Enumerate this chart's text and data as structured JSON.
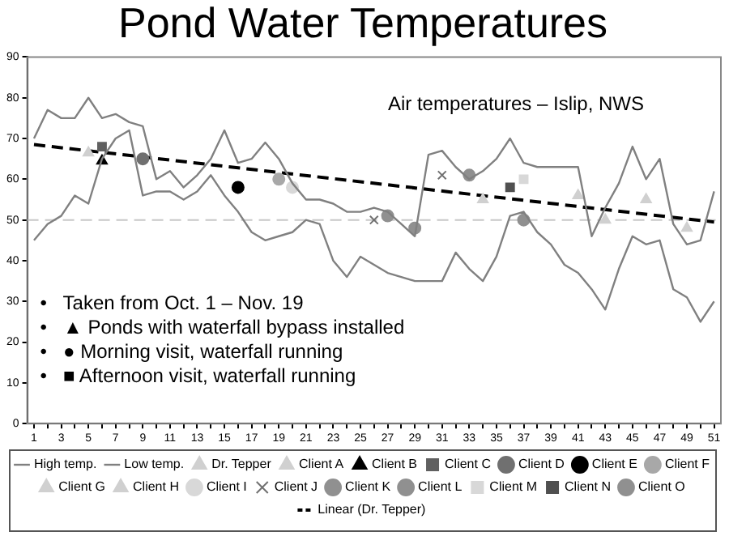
{
  "chart_data": {
    "type": "scatter",
    "title": "Pond Water Temperatures",
    "xlim": [
      0.5,
      51.5
    ],
    "xticks": [
      1,
      {
        "value": 2,
        "label": null
      },
      3,
      {
        "value": 4,
        "label": null
      },
      5,
      {
        "value": 6,
        "label": null
      },
      7,
      {
        "value": 8,
        "label": null
      },
      9,
      {
        "value": 10,
        "label": null
      },
      11,
      {
        "value": 12,
        "label": null
      },
      13,
      {
        "value": 14,
        "label": null
      },
      15,
      {
        "value": 16,
        "label": null
      },
      17,
      {
        "value": 18,
        "label": null
      },
      19,
      {
        "value": 20,
        "label": null
      },
      21,
      {
        "value": 22,
        "label": null
      },
      23,
      {
        "value": 24,
        "label": null
      },
      25,
      {
        "value": 26,
        "label": null
      },
      27,
      {
        "value": 28,
        "label": null
      },
      29,
      {
        "value": 30,
        "label": null
      },
      31,
      {
        "value": 32,
        "label": null
      },
      33,
      {
        "value": 34,
        "label": null
      },
      35,
      {
        "value": 36,
        "label": null
      },
      37,
      {
        "value": 38,
        "label": null
      },
      39,
      {
        "value": 40,
        "label": null
      },
      41,
      {
        "value": 42,
        "label": null
      },
      43,
      {
        "value": 44,
        "label": null
      },
      45,
      {
        "value": 46,
        "label": null
      },
      47,
      {
        "value": 48,
        "label": null
      },
      49,
      {
        "value": 50,
        "label": null
      },
      51
    ],
    "ylim": [
      0,
      90
    ],
    "yticks": [
      0,
      10,
      20,
      30,
      40,
      50,
      60,
      70,
      80,
      90
    ],
    "legend": "bottom",
    "ref_lines": [
      {
        "axis": "y",
        "value": 50,
        "label": null,
        "color": "#c8c8c8",
        "line_style": "dashed"
      }
    ],
    "annotations": [
      "Air temperatures – Islip, NWS",
      "•   Taken from Oct. 1 – Nov. 19",
      "•   ▲ Ponds with waterfall bypass installed",
      "•   ● Morning visit, waterfall running",
      "•   ■ Afternoon visit, waterfall running"
    ],
    "series": [
      {
        "name": "High temp.",
        "type": "line",
        "marker": "none",
        "color": "#808080",
        "x": [
          1,
          2,
          3,
          4,
          5,
          6,
          7,
          8,
          9,
          10,
          11,
          12,
          13,
          14,
          15,
          16,
          17,
          18,
          19,
          20,
          21,
          22,
          23,
          24,
          25,
          26,
          27,
          28,
          29,
          30,
          31,
          32,
          33,
          34,
          35,
          36,
          37,
          38,
          39,
          40,
          41,
          42,
          43,
          44,
          45,
          46,
          47,
          48,
          49,
          50,
          51
        ],
        "values": [
          70,
          77,
          75,
          75,
          80,
          75,
          76,
          74,
          73,
          60,
          62,
          58,
          61,
          65,
          72,
          64,
          65,
          69,
          65,
          59,
          55,
          55,
          54,
          52,
          52,
          53,
          52,
          49,
          46,
          66,
          67,
          63,
          60,
          62,
          65,
          70,
          64,
          63,
          63,
          63,
          63,
          46,
          53,
          59,
          68,
          60,
          65,
          49,
          44,
          45,
          57
        ]
      },
      {
        "name": "Low temp.",
        "type": "line",
        "marker": "none",
        "color": "#808080",
        "x": [
          1,
          2,
          3,
          4,
          5,
          6,
          7,
          8,
          9,
          10,
          11,
          12,
          13,
          14,
          15,
          16,
          17,
          18,
          19,
          20,
          21,
          22,
          23,
          24,
          25,
          26,
          27,
          28,
          29,
          30,
          31,
          32,
          33,
          34,
          35,
          36,
          37,
          38,
          39,
          40,
          41,
          42,
          43,
          44,
          45,
          46,
          47,
          48,
          49,
          50,
          51
        ],
        "values": [
          45,
          49,
          51,
          56,
          54,
          65,
          70,
          72,
          56,
          57,
          57,
          55,
          57,
          61,
          56,
          52,
          47,
          45,
          46,
          47,
          50,
          49,
          40,
          36,
          41,
          39,
          37,
          36,
          35,
          35,
          35,
          42,
          38,
          35,
          41,
          51,
          52,
          47,
          44,
          39,
          37,
          33,
          28,
          38,
          46,
          44,
          45,
          33,
          31,
          25,
          30
        ]
      },
      {
        "name": "Dr. Tepper",
        "marker": "triangle",
        "color": "#d0d0d0",
        "x": [
          5,
          34,
          41,
          43,
          46,
          49
        ],
        "values": [
          66.5,
          55,
          56,
          50,
          55,
          48
        ]
      },
      {
        "name": "Client A",
        "marker": "triangle",
        "color": "#d0d0d0"
      },
      {
        "name": "Client B",
        "marker": "triangle",
        "color": "#000000",
        "x": [
          6
        ],
        "values": [
          64.5
        ]
      },
      {
        "name": "Client C",
        "marker": "square",
        "color": "#606060",
        "x": [
          6
        ],
        "values": [
          68
        ]
      },
      {
        "name": "Client D",
        "marker": "circle",
        "color": "#707070",
        "x": [
          9
        ],
        "values": [
          65
        ]
      },
      {
        "name": "Client E",
        "marker": "circle",
        "color": "#000000",
        "x": [
          16
        ],
        "values": [
          58
        ]
      },
      {
        "name": "Client F",
        "marker": "circle",
        "color": "#a8a8a8",
        "x": [
          19
        ],
        "values": [
          60
        ]
      },
      {
        "name": "Client G",
        "marker": "triangle",
        "color": "#d0d0d0"
      },
      {
        "name": "Client H",
        "marker": "triangle",
        "color": "#d0d0d0"
      },
      {
        "name": "Client I",
        "marker": "circle",
        "color": "#d8d8d8",
        "x": [
          20
        ],
        "values": [
          58
        ]
      },
      {
        "name": "Client J",
        "marker": "cross",
        "color": "#707070",
        "x": [
          26,
          31
        ],
        "values": [
          50,
          61
        ]
      },
      {
        "name": "Client K",
        "marker": "circle",
        "color": "#909090",
        "x": [
          27,
          33
        ],
        "values": [
          51,
          61
        ]
      },
      {
        "name": "Client L",
        "marker": "circle",
        "color": "#909090",
        "x": [
          29
        ],
        "values": [
          48
        ]
      },
      {
        "name": "Client M",
        "marker": "square",
        "color": "#d8d8d8",
        "x": [
          37
        ],
        "values": [
          60
        ]
      },
      {
        "name": "Client N",
        "marker": "square",
        "color": "#505050",
        "x": [
          36
        ],
        "values": [
          58
        ]
      },
      {
        "name": "Client O",
        "marker": "circle",
        "color": "#909090",
        "x": [
          37
        ],
        "values": [
          50
        ]
      },
      {
        "name": "Linear (Dr. Tepper)",
        "type": "line",
        "marker": "none",
        "line_style": "dashed",
        "color": "#000000",
        "x": [
          1,
          51
        ],
        "values": [
          68.5,
          49.5
        ]
      }
    ]
  }
}
